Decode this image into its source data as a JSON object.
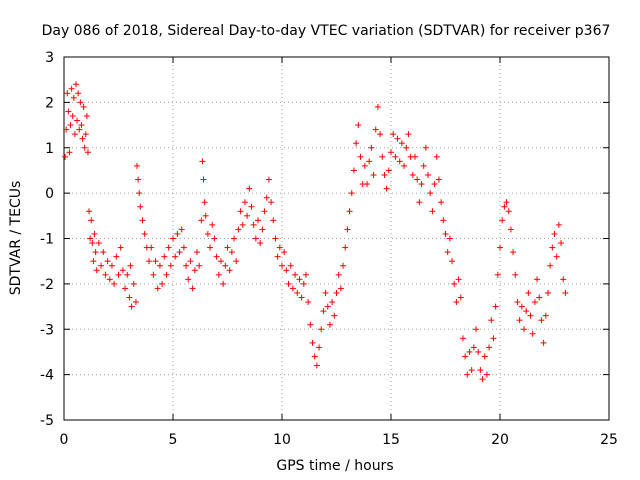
{
  "chart_data": {
    "type": "scatter",
    "title": "Day 086 of 2018, Sidereal Day-to-day VTEC variation (SDTVAR) for receiver p367",
    "xlabel": "GPS time / hours",
    "ylabel": "SDTVAR / TECUs",
    "xlim": [
      0,
      25
    ],
    "ylim": [
      -5,
      3
    ],
    "xticks": [
      "0",
      "5",
      "10",
      "15",
      "20",
      "25"
    ],
    "yticks": [
      "-5",
      "-4",
      "-3",
      "-2",
      "-1",
      "0",
      "1",
      "2",
      "3"
    ],
    "grid": true,
    "marker": "+",
    "colors": {
      "series": "#ff0000",
      "axes": "#000000",
      "grid": "#a0a0a0",
      "background": "#ffffff"
    },
    "series": [
      {
        "name": "SDTVAR",
        "points": [
          [
            0.05,
            0.8
          ],
          [
            0.1,
            1.4
          ],
          [
            0.15,
            2.2
          ],
          [
            0.2,
            1.8
          ],
          [
            0.25,
            0.9
          ],
          [
            0.3,
            1.5
          ],
          [
            0.35,
            2.3
          ],
          [
            0.4,
            1.7
          ],
          [
            0.45,
            2.1
          ],
          [
            0.5,
            1.3
          ],
          [
            0.55,
            2.4
          ],
          [
            0.6,
            1.6
          ],
          [
            0.65,
            2.2
          ],
          [
            0.7,
            1.4
          ],
          [
            0.75,
            2.0
          ],
          [
            0.8,
            1.5
          ],
          [
            0.85,
            1.2
          ],
          [
            0.9,
            1.9
          ],
          [
            0.95,
            1.0
          ],
          [
            1.0,
            1.3
          ],
          [
            1.05,
            1.7
          ],
          [
            1.1,
            0.9
          ],
          [
            1.15,
            -0.4
          ],
          [
            1.2,
            -1.0
          ],
          [
            1.25,
            -0.6
          ],
          [
            1.3,
            -1.1
          ],
          [
            1.35,
            -1.5
          ],
          [
            1.4,
            -0.9
          ],
          [
            1.45,
            -1.3
          ],
          [
            1.5,
            -1.7
          ],
          [
            1.6,
            -1.1
          ],
          [
            1.7,
            -1.6
          ],
          [
            1.8,
            -1.3
          ],
          [
            1.9,
            -1.8
          ],
          [
            2.0,
            -1.5
          ],
          [
            2.1,
            -1.9
          ],
          [
            2.2,
            -1.6
          ],
          [
            2.3,
            -2.0
          ],
          [
            2.4,
            -1.4
          ],
          [
            2.5,
            -1.8
          ],
          [
            2.6,
            -1.2
          ],
          [
            2.7,
            -1.7
          ],
          [
            2.8,
            -2.1
          ],
          [
            2.9,
            -1.8
          ],
          [
            3.0,
            -2.3
          ],
          [
            3.05,
            -1.6
          ],
          [
            3.1,
            -2.5
          ],
          [
            3.2,
            -2.0
          ],
          [
            3.3,
            -2.4
          ],
          [
            3.35,
            0.6
          ],
          [
            3.4,
            0.3
          ],
          [
            3.45,
            0.0
          ],
          [
            3.5,
            -0.3
          ],
          [
            3.6,
            -0.6
          ],
          [
            3.7,
            -0.9
          ],
          [
            3.8,
            -1.2
          ],
          [
            3.9,
            -1.5
          ],
          [
            4.0,
            -1.2
          ],
          [
            4.1,
            -1.8
          ],
          [
            4.2,
            -1.5
          ],
          [
            4.3,
            -2.1
          ],
          [
            4.4,
            -1.6
          ],
          [
            4.5,
            -2.0
          ],
          [
            4.6,
            -1.4
          ],
          [
            4.7,
            -1.8
          ],
          [
            4.8,
            -1.2
          ],
          [
            4.9,
            -1.6
          ],
          [
            5.0,
            -1.0
          ],
          [
            5.1,
            -1.4
          ],
          [
            5.2,
            -0.9
          ],
          [
            5.3,
            -1.3
          ],
          [
            5.4,
            -0.8
          ],
          [
            5.5,
            -1.2
          ],
          [
            5.6,
            -1.6
          ],
          [
            5.7,
            -1.9
          ],
          [
            5.8,
            -1.5
          ],
          [
            5.9,
            -2.1
          ],
          [
            6.0,
            -1.7
          ],
          [
            6.1,
            -1.3
          ],
          [
            6.2,
            -1.6
          ],
          [
            6.3,
            -0.6
          ],
          [
            6.35,
            0.7
          ],
          [
            6.4,
            0.3
          ],
          [
            6.45,
            -0.2
          ],
          [
            6.5,
            -0.5
          ],
          [
            6.6,
            -0.9
          ],
          [
            6.7,
            -1.2
          ],
          [
            6.8,
            -0.7
          ],
          [
            6.9,
            -1.0
          ],
          [
            7.0,
            -1.4
          ],
          [
            7.1,
            -1.8
          ],
          [
            7.2,
            -1.5
          ],
          [
            7.3,
            -2.0
          ],
          [
            7.4,
            -1.6
          ],
          [
            7.5,
            -1.2
          ],
          [
            7.6,
            -1.7
          ],
          [
            7.7,
            -1.3
          ],
          [
            7.8,
            -1.0
          ],
          [
            7.9,
            -1.5
          ],
          [
            8.0,
            -0.8
          ],
          [
            8.1,
            -0.4
          ],
          [
            8.2,
            -0.7
          ],
          [
            8.3,
            -0.2
          ],
          [
            8.4,
            -0.5
          ],
          [
            8.5,
            0.1
          ],
          [
            8.6,
            -0.3
          ],
          [
            8.7,
            -0.7
          ],
          [
            8.8,
            -1.0
          ],
          [
            8.9,
            -0.6
          ],
          [
            9.0,
            -1.1
          ],
          [
            9.1,
            -0.8
          ],
          [
            9.2,
            -0.4
          ],
          [
            9.3,
            -0.1
          ],
          [
            9.4,
            0.3
          ],
          [
            9.5,
            -0.2
          ],
          [
            9.6,
            -0.6
          ],
          [
            9.7,
            -1.0
          ],
          [
            9.8,
            -1.4
          ],
          [
            9.9,
            -1.2
          ],
          [
            10.0,
            -1.6
          ],
          [
            10.1,
            -1.3
          ],
          [
            10.2,
            -1.7
          ],
          [
            10.3,
            -2.0
          ],
          [
            10.4,
            -1.6
          ],
          [
            10.5,
            -2.1
          ],
          [
            10.6,
            -1.8
          ],
          [
            10.7,
            -2.2
          ],
          [
            10.8,
            -1.9
          ],
          [
            10.9,
            -2.3
          ],
          [
            11.0,
            -2.0
          ],
          [
            11.1,
            -1.8
          ],
          [
            11.2,
            -2.4
          ],
          [
            11.3,
            -2.9
          ],
          [
            11.4,
            -3.3
          ],
          [
            11.5,
            -3.6
          ],
          [
            11.6,
            -3.8
          ],
          [
            11.7,
            -3.4
          ],
          [
            11.8,
            -3.0
          ],
          [
            11.9,
            -2.6
          ],
          [
            12.0,
            -2.2
          ],
          [
            12.1,
            -2.5
          ],
          [
            12.2,
            -2.9
          ],
          [
            12.3,
            -2.4
          ],
          [
            12.4,
            -2.7
          ],
          [
            12.5,
            -2.2
          ],
          [
            12.6,
            -1.8
          ],
          [
            12.7,
            -2.1
          ],
          [
            12.8,
            -1.6
          ],
          [
            12.9,
            -1.2
          ],
          [
            13.0,
            -0.8
          ],
          [
            13.1,
            -0.4
          ],
          [
            13.2,
            0.0
          ],
          [
            13.3,
            0.5
          ],
          [
            13.4,
            1.1
          ],
          [
            13.5,
            1.5
          ],
          [
            13.6,
            0.8
          ],
          [
            13.7,
            0.2
          ],
          [
            13.8,
            0.6
          ],
          [
            13.9,
            0.2
          ],
          [
            14.0,
            0.7
          ],
          [
            14.1,
            1.0
          ],
          [
            14.2,
            0.4
          ],
          [
            14.3,
            1.4
          ],
          [
            14.4,
            1.9
          ],
          [
            14.5,
            1.3
          ],
          [
            14.6,
            0.8
          ],
          [
            14.7,
            0.4
          ],
          [
            14.8,
            0.1
          ],
          [
            14.9,
            0.5
          ],
          [
            15.0,
            0.9
          ],
          [
            15.1,
            1.3
          ],
          [
            15.2,
            0.8
          ],
          [
            15.3,
            1.2
          ],
          [
            15.4,
            0.7
          ],
          [
            15.5,
            1.1
          ],
          [
            15.6,
            0.6
          ],
          [
            15.7,
            1.0
          ],
          [
            15.8,
            1.3
          ],
          [
            15.9,
            0.8
          ],
          [
            16.0,
            0.4
          ],
          [
            16.1,
            0.8
          ],
          [
            16.2,
            0.3
          ],
          [
            16.3,
            -0.2
          ],
          [
            16.4,
            0.2
          ],
          [
            16.5,
            0.6
          ],
          [
            16.6,
            1.0
          ],
          [
            16.7,
            0.4
          ],
          [
            16.8,
            0.0
          ],
          [
            16.9,
            -0.4
          ],
          [
            17.0,
            0.2
          ],
          [
            17.1,
            0.8
          ],
          [
            17.2,
            0.3
          ],
          [
            17.3,
            -0.2
          ],
          [
            17.4,
            -0.6
          ],
          [
            17.5,
            -0.9
          ],
          [
            17.6,
            -1.3
          ],
          [
            17.7,
            -1.0
          ],
          [
            17.8,
            -1.5
          ],
          [
            17.9,
            -2.0
          ],
          [
            18.0,
            -2.4
          ],
          [
            18.1,
            -1.9
          ],
          [
            18.2,
            -2.3
          ],
          [
            18.3,
            -3.2
          ],
          [
            18.4,
            -3.6
          ],
          [
            18.5,
            -4.0
          ],
          [
            18.6,
            -3.5
          ],
          [
            18.7,
            -3.9
          ],
          [
            18.8,
            -3.4
          ],
          [
            18.9,
            -3.0
          ],
          [
            19.0,
            -3.5
          ],
          [
            19.1,
            -3.9
          ],
          [
            19.2,
            -4.1
          ],
          [
            19.3,
            -3.6
          ],
          [
            19.4,
            -4.0
          ],
          [
            19.5,
            -3.4
          ],
          [
            19.6,
            -2.8
          ],
          [
            19.7,
            -3.2
          ],
          [
            19.8,
            -2.5
          ],
          [
            19.9,
            -1.8
          ],
          [
            20.0,
            -1.2
          ],
          [
            20.1,
            -0.6
          ],
          [
            20.2,
            -0.3
          ],
          [
            20.3,
            -0.2
          ],
          [
            20.4,
            -0.4
          ],
          [
            20.5,
            -0.8
          ],
          [
            20.6,
            -1.3
          ],
          [
            20.7,
            -1.8
          ],
          [
            20.8,
            -2.4
          ],
          [
            20.9,
            -2.8
          ],
          [
            21.0,
            -2.5
          ],
          [
            21.1,
            -3.0
          ],
          [
            21.2,
            -2.6
          ],
          [
            21.3,
            -2.2
          ],
          [
            21.4,
            -2.7
          ],
          [
            21.5,
            -3.1
          ],
          [
            21.6,
            -2.4
          ],
          [
            21.7,
            -1.9
          ],
          [
            21.8,
            -2.3
          ],
          [
            21.9,
            -2.8
          ],
          [
            22.0,
            -3.3
          ],
          [
            22.1,
            -2.7
          ],
          [
            22.2,
            -2.2
          ],
          [
            22.3,
            -1.6
          ],
          [
            22.4,
            -1.2
          ],
          [
            22.5,
            -0.9
          ],
          [
            22.6,
            -1.4
          ],
          [
            22.7,
            -0.7
          ],
          [
            22.8,
            -1.1
          ],
          [
            22.9,
            -1.9
          ],
          [
            23.0,
            -2.2
          ]
        ]
      }
    ]
  }
}
